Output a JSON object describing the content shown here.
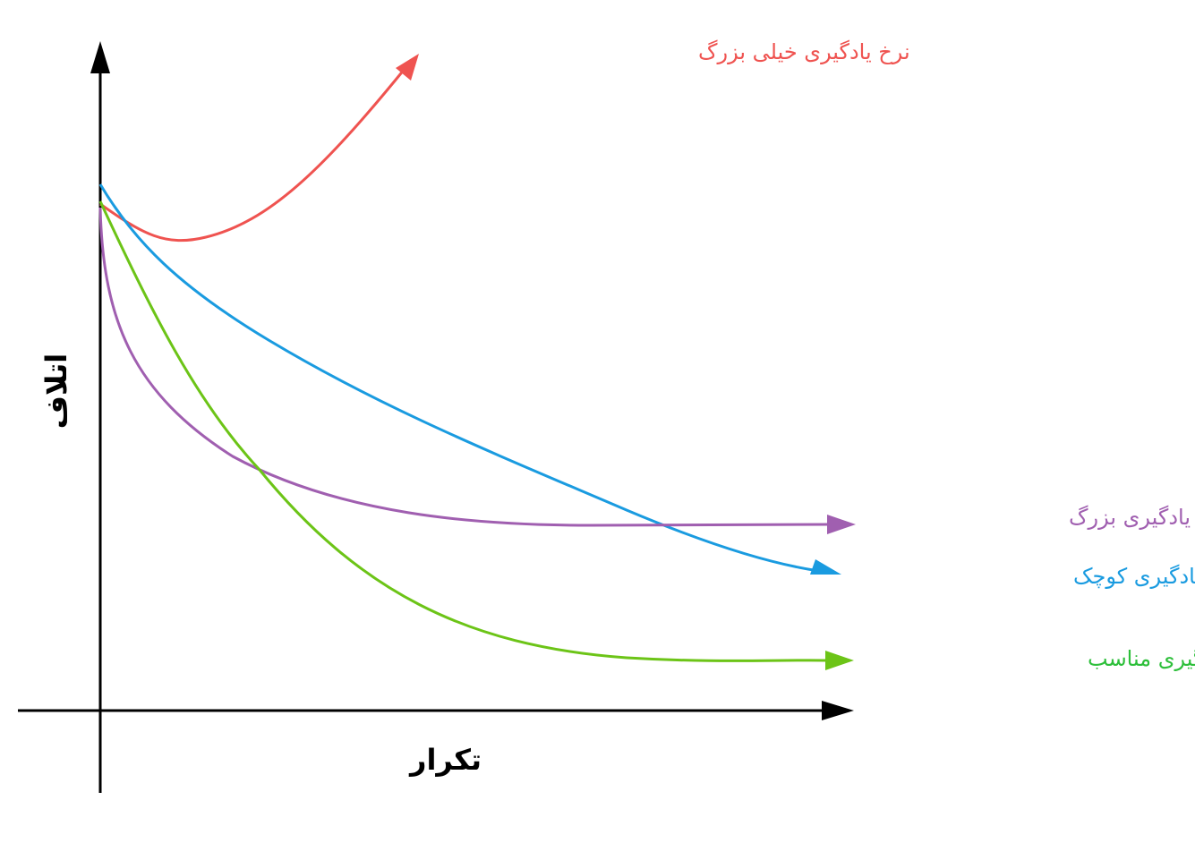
{
  "axes": {
    "x_label": "تکرار",
    "y_label": "اتلاف"
  },
  "curves": {
    "very_large": {
      "label": "نرخ یادگیری خیلی بزرگ",
      "color": "#ef5350"
    },
    "large": {
      "label": "نرخ یادگیری بزرگ",
      "color": "#a05fb0"
    },
    "small": {
      "label": "نرخ یادگیری کوچک",
      "color": "#1a9be0"
    },
    "suitable": {
      "label": "نرخ یادگیری مناسب",
      "color": "#6cc417"
    }
  }
}
